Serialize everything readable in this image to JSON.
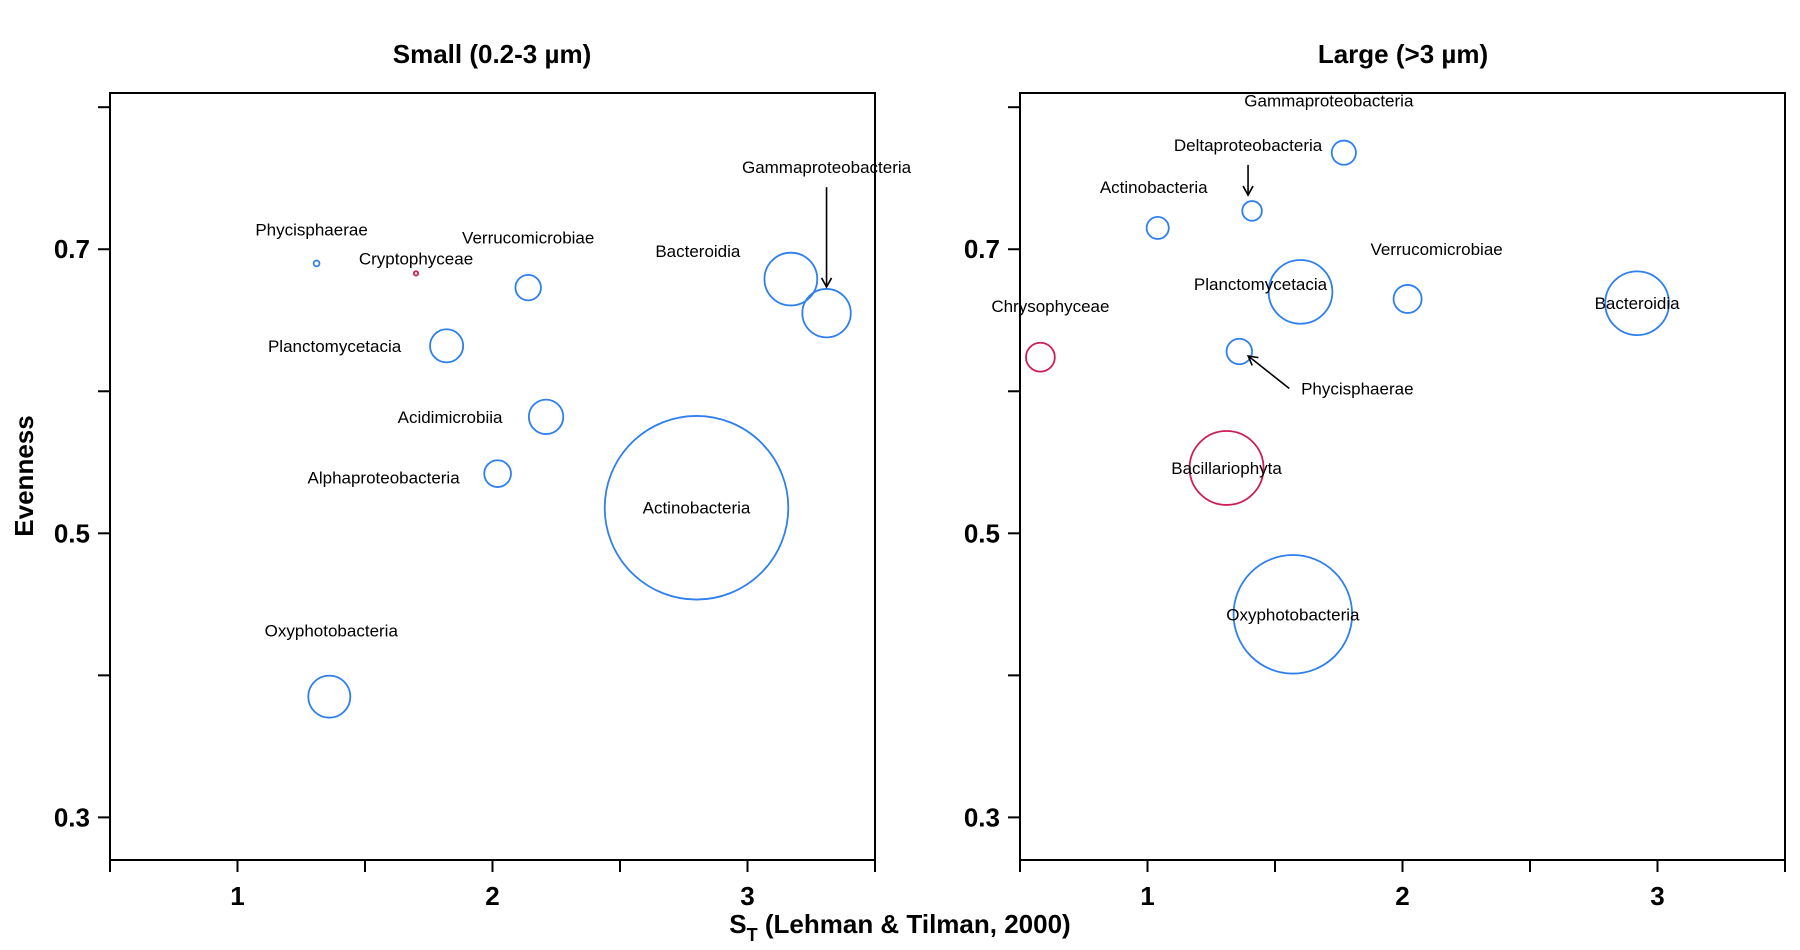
{
  "chart_data": [
    {
      "type": "scatter",
      "title": "Small (0.2-3 µm)",
      "xlim": [
        0.5,
        3.5
      ],
      "ylim": [
        0.27,
        0.81
      ],
      "xticks": [
        0.5,
        1,
        1.5,
        2,
        2.5,
        3,
        3.5
      ],
      "xtick_labels": [
        {
          "value": 1,
          "label": "1"
        },
        {
          "value": 2,
          "label": "2"
        },
        {
          "value": 3,
          "label": "3"
        }
      ],
      "yticks": [
        0.3,
        0.4,
        0.5,
        0.6,
        0.7,
        0.8
      ],
      "ytick_labels": [
        {
          "value": 0.3,
          "label": "0.3"
        },
        {
          "value": 0.5,
          "label": "0.5"
        },
        {
          "value": 0.7,
          "label": "0.7"
        }
      ],
      "colors": {
        "blue": "#2f7fef",
        "red": "#cc1f55"
      },
      "points": [
        {
          "name": "Phycisphaerae",
          "x": 1.31,
          "y": 0.69,
          "size": 0.023,
          "color": "blue"
        },
        {
          "name": "Cryptophyceae",
          "x": 1.7,
          "y": 0.683,
          "size": 0.017,
          "color": "red"
        },
        {
          "name": "Verrucomicrobiae",
          "x": 2.14,
          "y": 0.673,
          "size": 0.1,
          "color": "blue"
        },
        {
          "name": "Planctomycetacia",
          "x": 1.82,
          "y": 0.632,
          "size": 0.13,
          "color": "blue"
        },
        {
          "name": "Acidimicrobiia",
          "x": 2.21,
          "y": 0.582,
          "size": 0.135,
          "color": "blue"
        },
        {
          "name": "Alphaproteobacteria",
          "x": 2.02,
          "y": 0.542,
          "size": 0.105,
          "color": "blue"
        },
        {
          "name": "Oxyphotobacteria",
          "x": 1.36,
          "y": 0.385,
          "size": 0.165,
          "color": "blue"
        },
        {
          "name": "Actinobacteria",
          "x": 2.8,
          "y": 0.518,
          "size": 0.72,
          "color": "blue"
        },
        {
          "name": "Bacteroidia",
          "x": 3.17,
          "y": 0.679,
          "size": 0.207,
          "color": "blue"
        },
        {
          "name": "Gammaproteobacteria",
          "x": 3.31,
          "y": 0.655,
          "size": 0.19,
          "color": "blue"
        }
      ]
    },
    {
      "type": "scatter",
      "title": "Large (>3 µm)",
      "xlim": [
        0.5,
        3.5
      ],
      "ylim": [
        0.27,
        0.81
      ],
      "xticks": [
        0.5,
        1,
        1.5,
        2,
        2.5,
        3,
        3.5
      ],
      "xtick_labels": [
        {
          "value": 1,
          "label": "1"
        },
        {
          "value": 2,
          "label": "2"
        },
        {
          "value": 3,
          "label": "3"
        }
      ],
      "yticks": [
        0.3,
        0.4,
        0.5,
        0.6,
        0.7,
        0.8
      ],
      "ytick_labels": [
        {
          "value": 0.3,
          "label": "0.3"
        },
        {
          "value": 0.5,
          "label": "0.5"
        },
        {
          "value": 0.7,
          "label": "0.7"
        }
      ],
      "colors": {
        "blue": "#2f7fef",
        "red": "#cc1f55"
      },
      "points": [
        {
          "name": "Gammaproteobacteria",
          "x": 1.77,
          "y": 0.768,
          "size": 0.095,
          "color": "blue"
        },
        {
          "name": "Deltaproteobacteria",
          "x": 1.41,
          "y": 0.727,
          "size": 0.077,
          "color": "blue"
        },
        {
          "name": "Actinobacteria",
          "x": 1.04,
          "y": 0.715,
          "size": 0.087,
          "color": "blue"
        },
        {
          "name": "Planctomycetacia",
          "x": 1.6,
          "y": 0.67,
          "size": 0.25,
          "color": "blue"
        },
        {
          "name": "Verrucomicrobiae",
          "x": 2.02,
          "y": 0.665,
          "size": 0.11,
          "color": "blue"
        },
        {
          "name": "Bacteroidia",
          "x": 2.92,
          "y": 0.662,
          "size": 0.25,
          "color": "blue"
        },
        {
          "name": "Chrysophyceae",
          "x": 0.58,
          "y": 0.624,
          "size": 0.113,
          "color": "red"
        },
        {
          "name": "Phycisphaerae",
          "x": 1.36,
          "y": 0.628,
          "size": 0.1,
          "color": "blue"
        },
        {
          "name": "Bacillariophyta",
          "x": 1.31,
          "y": 0.546,
          "size": 0.29,
          "color": "red"
        },
        {
          "name": "Oxyphotobacteria",
          "x": 1.57,
          "y": 0.443,
          "size": 0.465,
          "color": "blue"
        }
      ]
    }
  ],
  "axes": {
    "ylabel": "Evenness",
    "xlabel_main": "S",
    "xlabel_sub": "T",
    "xlabel_rest": " (Lehman & Tilman, 2000)"
  }
}
